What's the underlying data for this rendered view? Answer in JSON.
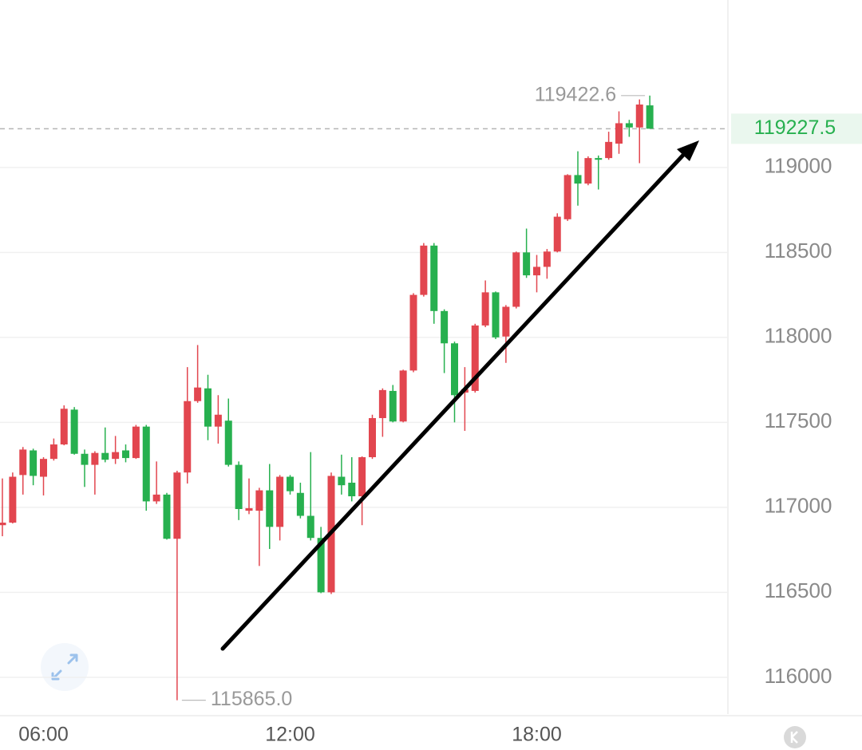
{
  "chart_data": {
    "type": "candlestick",
    "categories": [
      null,
      null,
      null,
      null,
      "06:00",
      null,
      null,
      null,
      null,
      null,
      null,
      null,
      null,
      null,
      null,
      null,
      null,
      null,
      null,
      null,
      null,
      null,
      null,
      null,
      null,
      null,
      null,
      null,
      "12:00",
      null,
      null,
      null,
      null,
      null,
      null,
      null,
      null,
      null,
      null,
      null,
      null,
      null,
      null,
      null,
      null,
      null,
      null,
      null,
      null,
      null,
      null,
      null,
      "18:00",
      null,
      null,
      null,
      null,
      null,
      null,
      null,
      null,
      null,
      null,
      null
    ],
    "open": [
      116895,
      116910,
      117190,
      117335,
      117180,
      117285,
      117370,
      117575,
      117315,
      117250,
      117320,
      117285,
      117335,
      117290,
      117475,
      117035,
      117075,
      116815,
      117205,
      117625,
      117700,
      117475,
      117510,
      117250,
      116980,
      116980,
      117100,
      116885,
      117180,
      117085,
      116950,
      116820,
      116500,
      117180,
      117145,
      117065,
      117295,
      117525,
      117685,
      117505,
      117805,
      118250,
      118540,
      118155,
      117965,
      117675,
      117685,
      118070,
      118265,
      118005,
      118180,
      118500,
      118365,
      118415,
      118505,
      118695,
      118955,
      118905,
      119055,
      119055,
      119140,
      119260,
      119235,
      119365
    ],
    "high": [
      117170,
      117205,
      117355,
      117345,
      117295,
      117405,
      117600,
      117590,
      117340,
      117330,
      117470,
      117420,
      117370,
      117485,
      117485,
      117270,
      117085,
      117215,
      117825,
      117955,
      117780,
      117660,
      117640,
      117270,
      117170,
      117115,
      117255,
      117190,
      117190,
      117145,
      117325,
      116885,
      117205,
      117310,
      117295,
      117300,
      117545,
      117700,
      117720,
      117810,
      118260,
      118555,
      118555,
      118165,
      117975,
      117825,
      118080,
      118335,
      118270,
      118190,
      118505,
      118640,
      118485,
      118520,
      118730,
      118960,
      119095,
      119065,
      119070,
      119210,
      119330,
      119280,
      119400,
      119422.6
    ],
    "low": [
      116830,
      116905,
      117075,
      117130,
      117070,
      117275,
      117365,
      117310,
      117120,
      117075,
      117265,
      117255,
      117265,
      117285,
      116980,
      117020,
      116810,
      115865,
      117140,
      117615,
      117395,
      117375,
      117240,
      116925,
      116960,
      116655,
      116755,
      116805,
      117075,
      116935,
      116805,
      116495,
      116490,
      117075,
      117035,
      116895,
      117285,
      117415,
      117500,
      117500,
      117795,
      118240,
      118080,
      117790,
      117500,
      117450,
      117675,
      118060,
      117990,
      117850,
      118170,
      118350,
      118265,
      118345,
      118500,
      118685,
      118775,
      118895,
      118870,
      119045,
      119080,
      119180,
      119025,
      119235
    ],
    "close": [
      116910,
      117180,
      117340,
      117185,
      117285,
      117370,
      117580,
      117315,
      117250,
      117320,
      117280,
      117325,
      117290,
      117475,
      117035,
      117075,
      116815,
      117205,
      117625,
      117705,
      117475,
      117545,
      117250,
      116990,
      116995,
      117100,
      116885,
      117180,
      117095,
      116950,
      116820,
      116500,
      117185,
      117130,
      117065,
      117295,
      117525,
      117690,
      117505,
      117805,
      118250,
      118540,
      118155,
      117965,
      117660,
      117695,
      118070,
      118265,
      118000,
      118180,
      118500,
      118365,
      118415,
      118505,
      118710,
      118955,
      118905,
      119055,
      119045,
      119150,
      119260,
      119235,
      119370,
      119227.5
    ],
    "up_color": "#e2464f",
    "down_color": "#27b04f",
    "ylim": [
      115760,
      119985
    ],
    "yticks": [
      116000,
      116500,
      117000,
      117500,
      118000,
      118500,
      119000
    ],
    "grid": true,
    "high_label": 119422.6,
    "low_label": {
      "value": 115865,
      "label": "115865.0"
    },
    "last_price": 119227.5
  }
}
